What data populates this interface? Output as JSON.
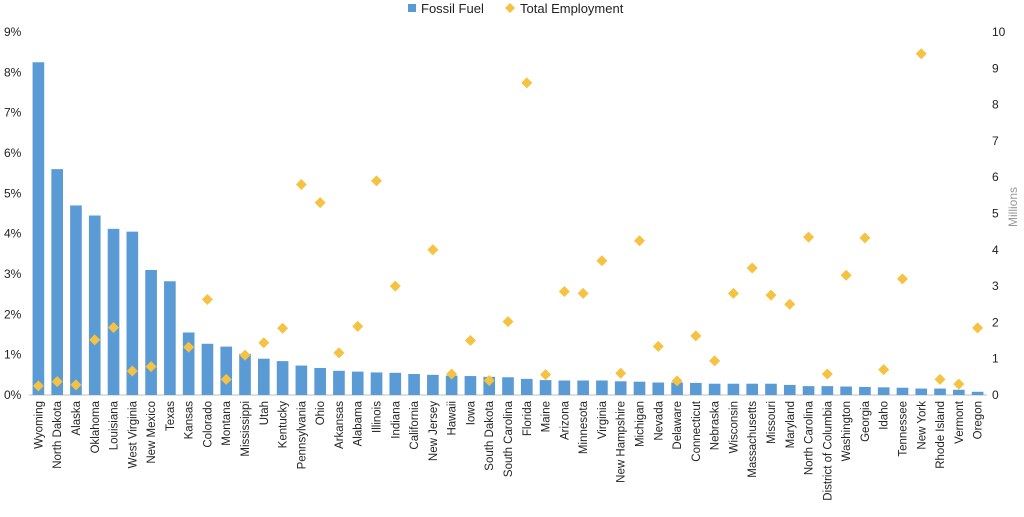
{
  "chart_data": {
    "type": "bar",
    "legend_position": "top",
    "grid": false,
    "categories": [
      "Wyoming",
      "North Dakota",
      "Alaska",
      "Oklahoma",
      "Louisiana",
      "West Virginia",
      "New Mexico",
      "Texas",
      "Kansas",
      "Colorado",
      "Montana",
      "Mississippi",
      "Utah",
      "Kentucky",
      "Pennsylvania",
      "Ohio",
      "Arkansas",
      "Alabama",
      "Illinois",
      "Indiana",
      "California",
      "New Jersey",
      "Hawaii",
      "Iowa",
      "South Dakota",
      "South Carolina",
      "Florida",
      "Maine",
      "Arizona",
      "Minnesota",
      "Virginia",
      "New Hampshire",
      "Michigan",
      "Nevada",
      "Delaware",
      "Connecticut",
      "Nebraska",
      "Wisconsin",
      "Massachusetts",
      "Missouri",
      "Maryland",
      "North Carolina",
      "District of Columbia",
      "Washington",
      "Georgia",
      "Idaho",
      "Tennessee",
      "New York",
      "Rhode Island",
      "Vermont",
      "Oregon"
    ],
    "series": [
      {
        "name": "Fossil Fuel",
        "kind": "bar",
        "axis": "left",
        "color": "#5b9bd5",
        "values": [
          8.25,
          5.6,
          4.7,
          4.45,
          4.12,
          4.05,
          3.1,
          2.82,
          1.55,
          1.27,
          1.2,
          1.02,
          0.9,
          0.84,
          0.73,
          0.67,
          0.6,
          0.58,
          0.56,
          0.55,
          0.52,
          0.5,
          0.48,
          0.47,
          0.45,
          0.44,
          0.4,
          0.37,
          0.36,
          0.36,
          0.36,
          0.34,
          0.33,
          0.31,
          0.31,
          0.3,
          0.28,
          0.28,
          0.28,
          0.28,
          0.25,
          0.22,
          0.22,
          0.21,
          0.2,
          0.19,
          0.18,
          0.16,
          0.16,
          0.13,
          0.08
        ]
      },
      {
        "name": "Total Employment",
        "kind": "scatter",
        "axis": "right",
        "color": "#f5c242",
        "values": [
          0.25,
          0.37,
          0.28,
          1.52,
          1.86,
          0.66,
          0.78,
          0,
          1.32,
          2.63,
          0.43,
          1.1,
          1.44,
          1.84,
          5.8,
          5.3,
          1.16,
          1.89,
          5.9,
          3.0,
          0,
          4.0,
          0.58,
          1.5,
          0.4,
          2.02,
          8.6,
          0.56,
          2.85,
          2.8,
          3.7,
          0.6,
          4.25,
          1.34,
          0.39,
          1.63,
          0.94,
          2.8,
          3.5,
          2.75,
          2.5,
          4.35,
          0.58,
          3.3,
          4.33,
          0.7,
          3.2,
          9.4,
          0.43,
          0.3,
          1.85
        ]
      }
    ],
    "y_left": {
      "min": 0,
      "max": 9,
      "ticks": [
        "0%",
        "1%",
        "2%",
        "3%",
        "4%",
        "5%",
        "6%",
        "7%",
        "8%",
        "9%"
      ]
    },
    "y_right": {
      "min": 0,
      "max": 10,
      "ticks": [
        "0",
        "1",
        "2",
        "3",
        "4",
        "5",
        "6",
        "7",
        "8",
        "9",
        "10"
      ],
      "label": "Millions"
    }
  }
}
